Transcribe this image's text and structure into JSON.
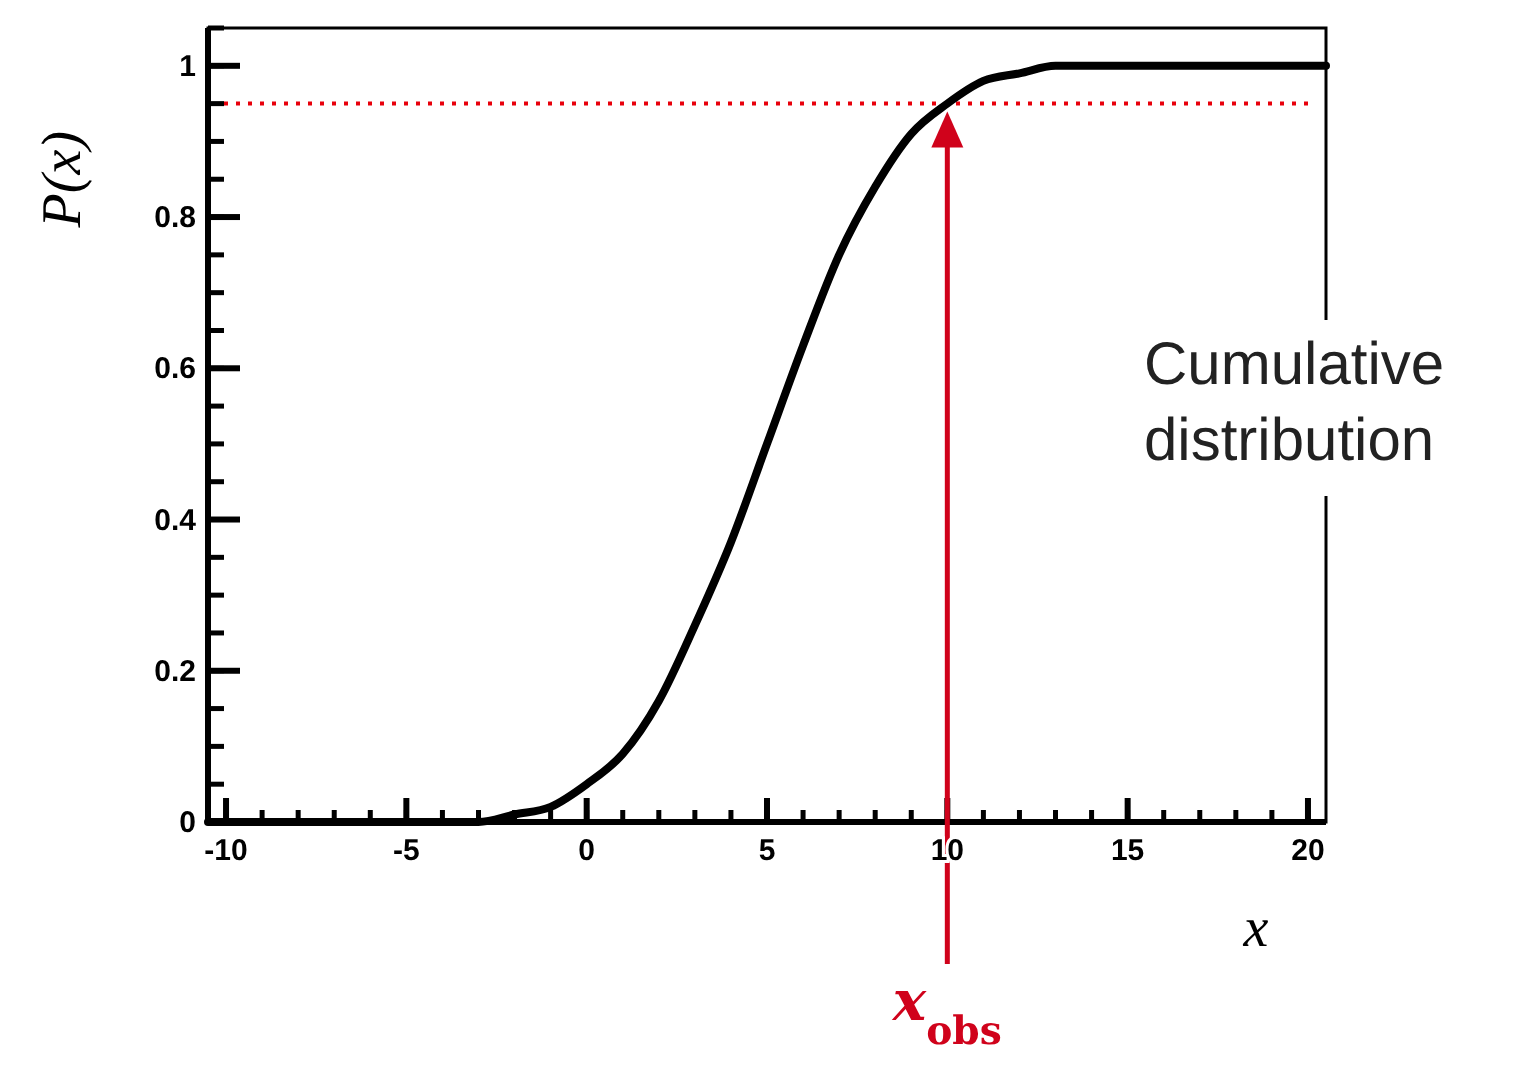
{
  "chart_data": {
    "type": "line",
    "xlabel": "x",
    "ylabel": "P(x)",
    "xlim": [
      -10.5,
      20.5
    ],
    "ylim": [
      0,
      1.05
    ],
    "xticks": [
      -10,
      -5,
      0,
      5,
      10,
      15,
      20
    ],
    "yticks": [
      0,
      0.2,
      0.4,
      0.6,
      0.8,
      1
    ],
    "grid": false,
    "marker": "none",
    "line_style": "solid",
    "x": [
      -10.5,
      -8,
      -6,
      -4,
      -3,
      -2,
      -1,
      0,
      1,
      2,
      3,
      4,
      5,
      6,
      7,
      8,
      9,
      10,
      11,
      12,
      13,
      14,
      15,
      17,
      20.5
    ],
    "series": [
      {
        "color": "#000000",
        "values": [
          0,
          0,
          0,
          0,
          0,
          0.01,
          0.02,
          0.05,
          0.09,
          0.16,
          0.26,
          0.37,
          0.5,
          0.63,
          0.75,
          0.84,
          0.91,
          0.95,
          0.98,
          0.99,
          1,
          1,
          1,
          1,
          1
        ]
      }
    ],
    "ref_lines": [
      {
        "axis": "y",
        "value": 0.95,
        "color": "#e8000b",
        "line_style": "dotted"
      },
      {
        "axis": "x",
        "value": 10,
        "label": "x$_{obs}$",
        "color": "#d0021b",
        "line_style": "solid"
      }
    ],
    "annotations": [
      "Cumulative distribution"
    ]
  }
}
